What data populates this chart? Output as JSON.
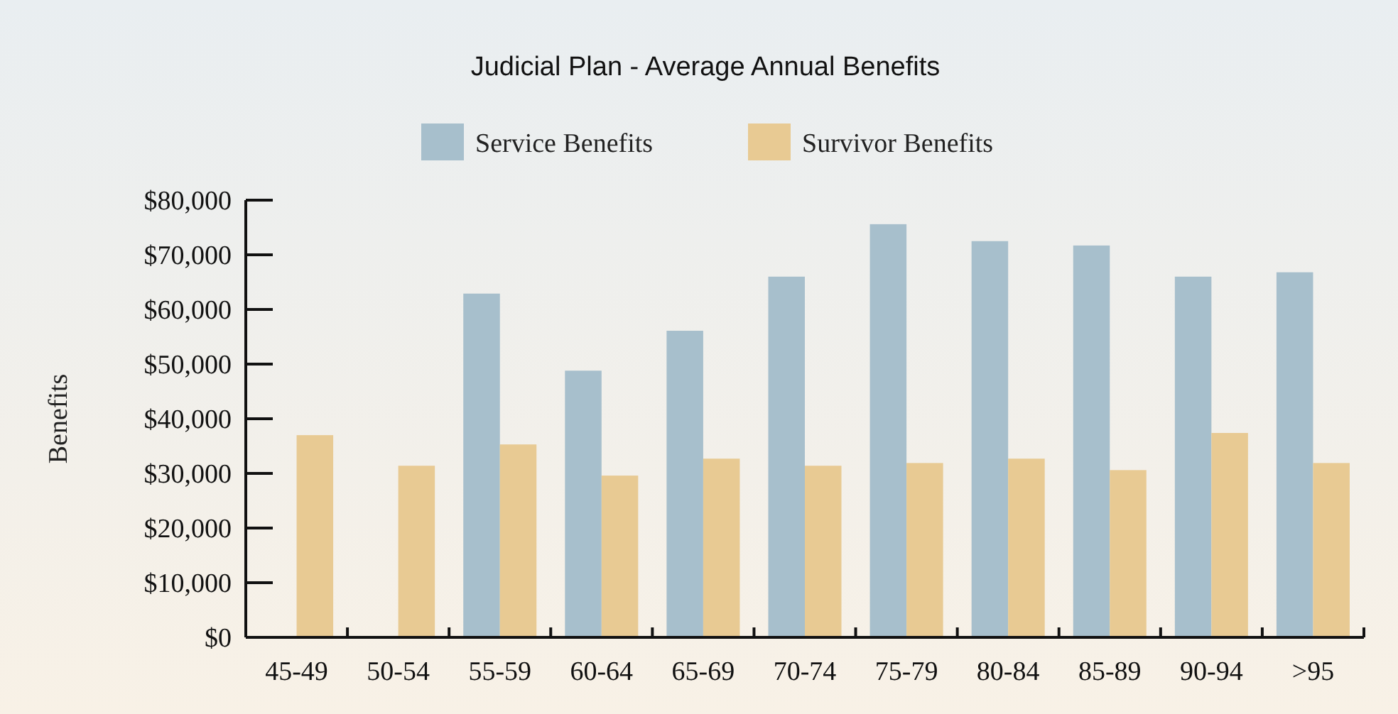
{
  "chart_data": {
    "type": "bar",
    "title": "Judicial Plan - Average Annual Benefits",
    "ylabel": "Benefits",
    "categories": [
      "45-49",
      "50-54",
      "55-59",
      "60-64",
      "65-69",
      "70-74",
      "75-79",
      "80-84",
      "85-89",
      "90-94",
      ">95"
    ],
    "series": [
      {
        "name": "Service Benefits",
        "color": "#a7bfcc",
        "values": [
          null,
          null,
          62900,
          48800,
          56100,
          66000,
          75600,
          72500,
          71700,
          66000,
          66800
        ]
      },
      {
        "name": "Survivor Benefits",
        "color": "#e8ca93",
        "values": [
          37000,
          31400,
          35300,
          29600,
          32700,
          31400,
          31900,
          32700,
          30600,
          37400,
          31900
        ]
      }
    ],
    "ylim": [
      0,
      80000
    ],
    "yticks": [
      {
        "value": 0,
        "label": "$0"
      },
      {
        "value": 10000,
        "label": "$10,000"
      },
      {
        "value": 20000,
        "label": "$20,000"
      },
      {
        "value": 30000,
        "label": "$30,000"
      },
      {
        "value": 40000,
        "label": "$40,000"
      },
      {
        "value": 50000,
        "label": "$50,000"
      },
      {
        "value": 60000,
        "label": "$60,000"
      },
      {
        "value": 70000,
        "label": "$70,000"
      },
      {
        "value": 80000,
        "label": "$80,000"
      }
    ],
    "grid": false,
    "legend": "top"
  }
}
